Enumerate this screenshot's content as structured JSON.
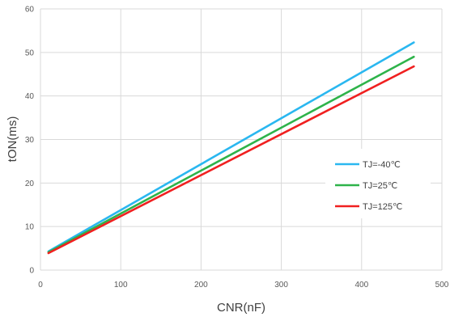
{
  "chart_data": {
    "type": "line",
    "title": "",
    "xlabel": "CNR(nF)",
    "ylabel": "tON(ms)",
    "xlim": [
      0,
      500
    ],
    "ylim": [
      0,
      60
    ],
    "xticks": [
      0,
      100,
      200,
      300,
      400,
      500
    ],
    "yticks": [
      0,
      10,
      20,
      30,
      40,
      50,
      60
    ],
    "grid": true,
    "legend_position": "right",
    "series": [
      {
        "name": "TJ=-40℃",
        "color": "#2ab7f0",
        "x": [
          10,
          465
        ],
        "y": [
          4.3,
          52.3
        ]
      },
      {
        "name": "TJ=25℃",
        "color": "#2eb34a",
        "x": [
          10,
          465
        ],
        "y": [
          4.1,
          49.0
        ]
      },
      {
        "name": "TJ=125℃",
        "color": "#f02020",
        "x": [
          10,
          465
        ],
        "y": [
          3.9,
          46.8
        ]
      }
    ]
  }
}
